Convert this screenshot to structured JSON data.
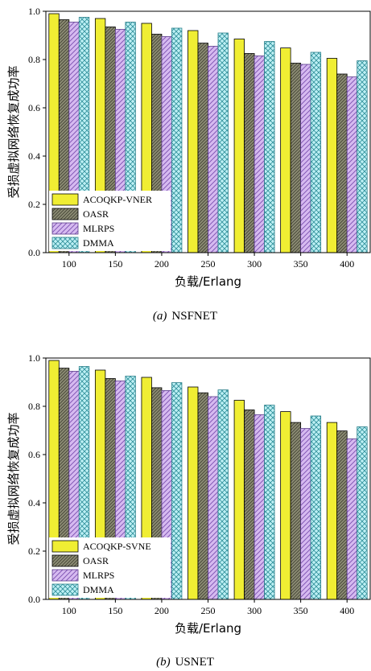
{
  "chart_data": [
    {
      "type": "bar",
      "caption": {
        "letter": "(a)",
        "text": "NSFNET"
      },
      "categories": [
        "100",
        "150",
        "200",
        "250",
        "300",
        "350",
        "400"
      ],
      "series": [
        {
          "name": "ACOQKP-VNER",
          "values": [
            0.99,
            0.97,
            0.95,
            0.92,
            0.885,
            0.848,
            0.805
          ]
        },
        {
          "name": "OASR",
          "values": [
            0.965,
            0.935,
            0.905,
            0.868,
            0.825,
            0.785,
            0.74
          ]
        },
        {
          "name": "MLRPS",
          "values": [
            0.955,
            0.925,
            0.895,
            0.855,
            0.815,
            0.78,
            0.728
          ]
        },
        {
          "name": "DMMA",
          "values": [
            0.975,
            0.955,
            0.93,
            0.91,
            0.875,
            0.83,
            0.795
          ]
        }
      ],
      "xlabel": "负载/Erlang",
      "ylabel": "受损虚拟网络恢复成功率",
      "ylim": [
        0,
        1.0
      ],
      "yticks": [
        "0.0",
        "0.2",
        "0.4",
        "0.6",
        "0.8",
        "1.0"
      ],
      "legend": "bottom-left",
      "grid": false
    },
    {
      "type": "bar",
      "caption": {
        "letter": "(b)",
        "text": "USNET"
      },
      "categories": [
        "100",
        "150",
        "200",
        "250",
        "300",
        "350",
        "400"
      ],
      "series": [
        {
          "name": "ACOQKP-SVNE",
          "values": [
            0.99,
            0.95,
            0.92,
            0.88,
            0.825,
            0.778,
            0.733
          ]
        },
        {
          "name": "OASR",
          "values": [
            0.958,
            0.915,
            0.877,
            0.856,
            0.785,
            0.733,
            0.698
          ]
        },
        {
          "name": "MLRPS",
          "values": [
            0.945,
            0.905,
            0.865,
            0.84,
            0.765,
            0.708,
            0.665
          ]
        },
        {
          "name": "DMMA",
          "values": [
            0.965,
            0.925,
            0.898,
            0.868,
            0.805,
            0.76,
            0.715
          ]
        }
      ],
      "xlabel": "负载/Erlang",
      "ylabel": "受损虚拟网络恢复成功率",
      "ylim": [
        0,
        1.0
      ],
      "yticks": [
        "0.0",
        "0.2",
        "0.4",
        "0.6",
        "0.8",
        "1.0"
      ],
      "legend": "bottom-left",
      "grid": false
    }
  ],
  "colors": {
    "series_fill": [
      "#f0ee33",
      "#8c8c74",
      "#d4b6ee",
      "#b8eef2"
    ],
    "series_stroke": [
      "#000000",
      "#000000",
      "#5a3a8a",
      "#2a7f8a"
    ]
  }
}
